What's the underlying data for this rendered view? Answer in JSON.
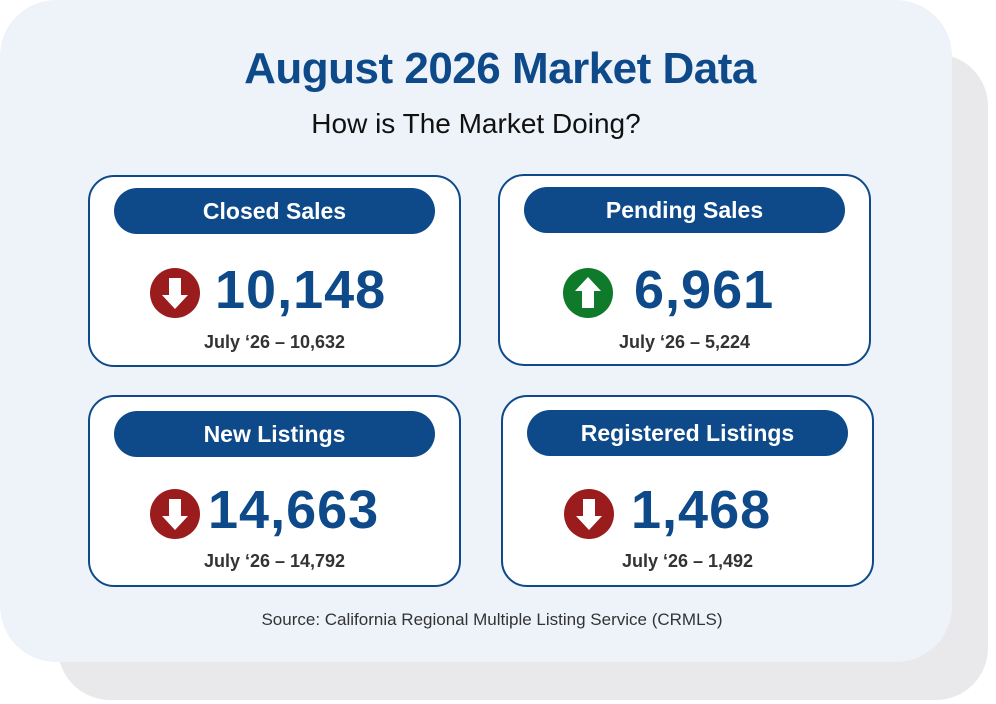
{
  "header": {
    "title": "August 2026 Market Data",
    "subtitle": "How is The Market Doing?"
  },
  "stats": [
    {
      "label": "Closed Sales",
      "value": "10,148",
      "prior": "July ‘26 – 10,632",
      "trend": "down",
      "trend_icon": "arrow-down-icon",
      "trend_color": "#9b1c1c"
    },
    {
      "label": "Pending Sales",
      "value": "6,961",
      "prior": "July ‘26 – 5,224",
      "trend": "up",
      "trend_icon": "arrow-up-icon",
      "trend_color": "#0f7a2a"
    },
    {
      "label": "New Listings",
      "value": "14,663",
      "prior": "July ‘26 – 14,792",
      "trend": "down",
      "trend_icon": "arrow-down-icon",
      "trend_color": "#9b1c1c"
    },
    {
      "label": "Registered Listings",
      "value": "1,468",
      "prior": "July ‘26 – 1,492",
      "trend": "down",
      "trend_icon": "arrow-down-icon",
      "trend_color": "#9b1c1c"
    }
  ],
  "footer": {
    "source": "Source: California Regional Multiple Listing Service (CRMLS)"
  },
  "colors": {
    "brand": "#0e4a8a",
    "background": "#eef3fa",
    "down": "#9b1c1c",
    "up": "#0f7a2a"
  }
}
